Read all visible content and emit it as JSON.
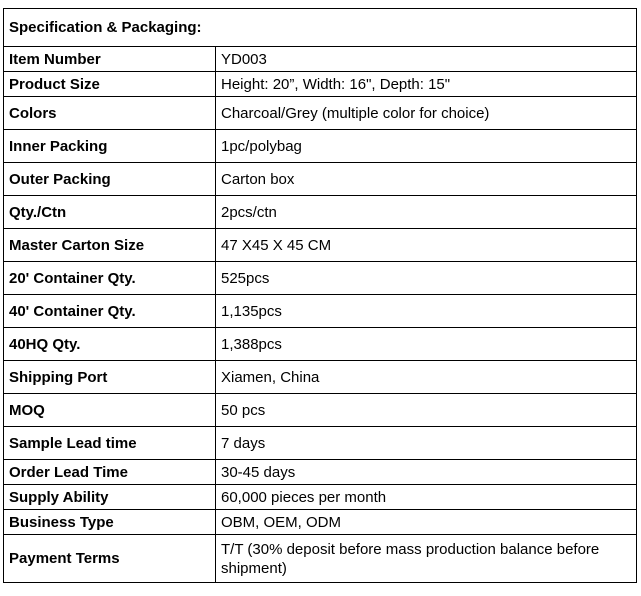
{
  "section_title": "Specification & Packaging:",
  "rows": [
    {
      "label": "Item Number",
      "value": "YD003"
    },
    {
      "label": "Product Size",
      "value": "Height: 20”, Width: 16\", Depth: 15\""
    },
    {
      "label": "Colors",
      "value": "Charcoal/Grey (multiple color for choice)"
    },
    {
      "label": "Inner Packing",
      "value": "1pc/polybag"
    },
    {
      "label": "Outer Packing",
      "value": "Carton box"
    },
    {
      "label": "Qty./Ctn",
      "value": "2pcs/ctn"
    },
    {
      "label": "Master Carton Size",
      "value": "47 X45 X 45 CM"
    },
    {
      "label": "20' Container Qty.",
      "value": "525pcs"
    },
    {
      "label": "40' Container Qty.",
      "value": "1,135pcs"
    },
    {
      "label": "40HQ Qty.",
      "value": "1,388pcs"
    },
    {
      "label": "Shipping Port",
      "value": "Xiamen, China"
    },
    {
      "label": "MOQ",
      "value": "50 pcs"
    },
    {
      "label": "Sample Lead time",
      "value": "7 days"
    },
    {
      "label": "Order Lead Time",
      "value": "30-45 days"
    },
    {
      "label": "Supply Ability",
      "value": "60,000 pieces per month"
    },
    {
      "label": "Business Type",
      "value": "OBM, OEM, ODM"
    },
    {
      "label": "Payment Terms",
      "value": "T/T (30% deposit before mass production balance before shipment)"
    }
  ]
}
